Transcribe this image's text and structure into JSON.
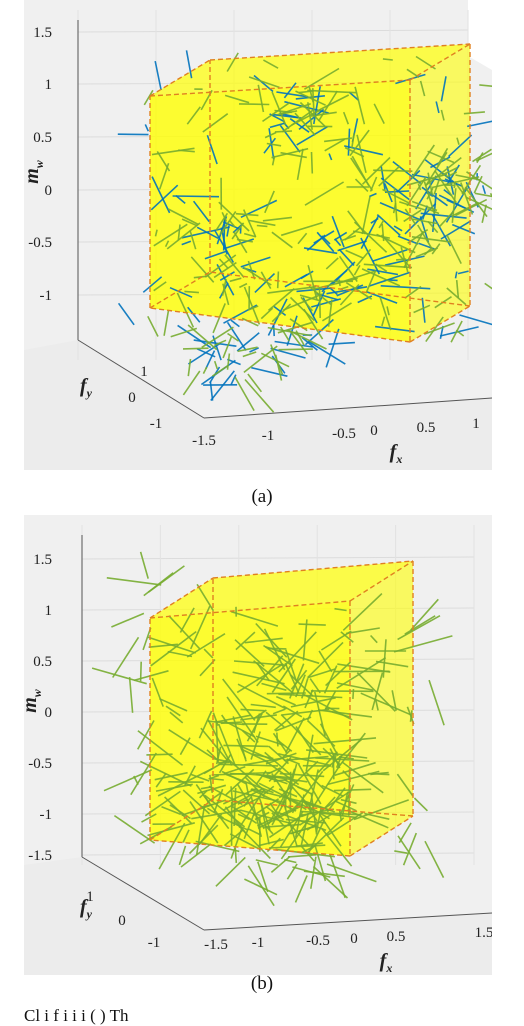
{
  "chart_data": [
    {
      "type": "3d-vector-field",
      "panel_label": "(a)",
      "zlabel": "m_w",
      "ylabel": "f_y",
      "xlabel": "f_x",
      "z_ticks": [
        "1.5",
        "1",
        "0.5",
        "0",
        "-0.5",
        "-1"
      ],
      "y_ticks": [
        "1",
        "0",
        "-1"
      ],
      "x_ticks": [
        "-1.5",
        "-1",
        "-0.5",
        "0",
        "0.5",
        "1"
      ],
      "zlim": [
        -1.5,
        1.5
      ],
      "box": {
        "fx": [
          -1,
          1
        ],
        "fy": [
          -1,
          1
        ],
        "mw": [
          -1,
          1
        ],
        "color": "#ffff00",
        "edge_color": "#e08020"
      },
      "series": [
        {
          "color": "#0072bd",
          "count": 170
        },
        {
          "color": "#77ac30",
          "count": 260
        }
      ],
      "grid": true
    },
    {
      "type": "3d-vector-field",
      "panel_label": "(b)",
      "zlabel": "m_w",
      "ylabel": "f_y",
      "xlabel": "f_x",
      "z_ticks": [
        "1.5",
        "1",
        "0.5",
        "0",
        "-0.5",
        "-1",
        "-1.5"
      ],
      "y_ticks": [
        "1",
        "0",
        "-1"
      ],
      "x_ticks": [
        "-1.5",
        "-1",
        "-0.5",
        "0",
        "0.5",
        "1.5"
      ],
      "zlim": [
        -1.5,
        1.5
      ],
      "box": {
        "fx": [
          -1,
          1
        ],
        "fy": [
          -1,
          1
        ],
        "mw": [
          -1,
          1
        ],
        "color": "#ffff00",
        "edge_color": "#e08020"
      },
      "series": [
        {
          "color": "#77ac30",
          "count": 380
        }
      ],
      "grid": true
    }
  ],
  "captions": {
    "a": "(a)",
    "b": "(b)"
  },
  "bottom_text": "Cl                              i                     f              i      i   i           (  ) Th"
}
